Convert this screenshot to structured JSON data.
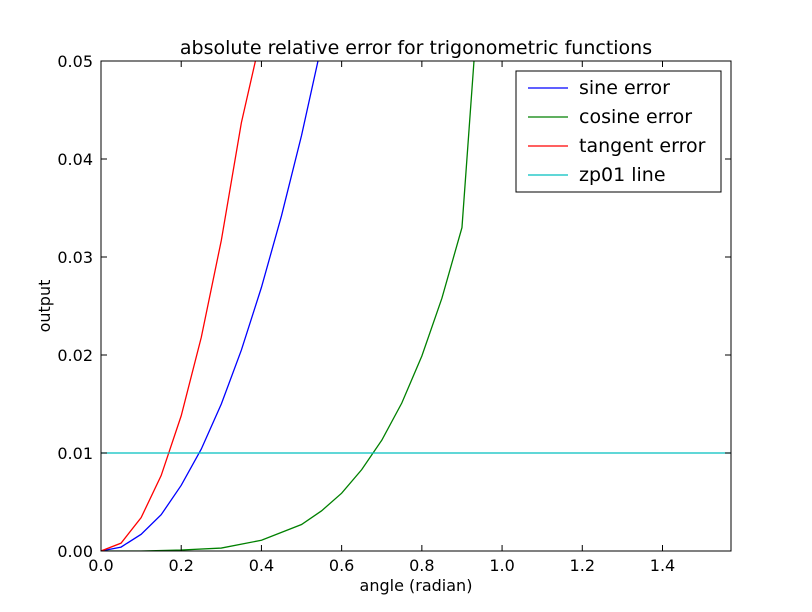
{
  "chart_data": {
    "type": "line",
    "title": "absolute relative error for trigonometric functions",
    "xlabel": "angle (radian)",
    "ylabel": "output",
    "xlim": [
      0.0,
      1.5708
    ],
    "ylim": [
      0.0,
      0.05
    ],
    "grid": false,
    "legend_position": "top-right",
    "x_ticks": [
      "0.0",
      "0.2",
      "0.4",
      "0.6",
      "0.8",
      "1.0",
      "1.2",
      "1.4"
    ],
    "y_ticks": [
      "0.00",
      "0.01",
      "0.02",
      "0.03",
      "0.04",
      "0.05"
    ],
    "series": [
      {
        "name": "sine error",
        "color": "#0000ff",
        "x": [
          0.0,
          0.05,
          0.1,
          0.15,
          0.2,
          0.25,
          0.3,
          0.35,
          0.4,
          0.45,
          0.5,
          0.541
        ],
        "y": [
          0.0,
          0.0004,
          0.0017,
          0.0037,
          0.0067,
          0.0104,
          0.015,
          0.0205,
          0.0269,
          0.0342,
          0.0424,
          0.05
        ]
      },
      {
        "name": "cosine error",
        "color": "#008000",
        "x": [
          0.0,
          0.1,
          0.2,
          0.3,
          0.4,
          0.5,
          0.55,
          0.6,
          0.65,
          0.7,
          0.75,
          0.8,
          0.85,
          0.9,
          0.93
        ],
        "y": [
          0.0,
          0.0,
          0.0001,
          0.0003,
          0.0011,
          0.0027,
          0.0041,
          0.0059,
          0.0083,
          0.0113,
          0.0151,
          0.0199,
          0.0258,
          0.033,
          0.05
        ]
      },
      {
        "name": "tangent error",
        "color": "#ff0000",
        "x": [
          0.0,
          0.05,
          0.1,
          0.15,
          0.2,
          0.25,
          0.3,
          0.35,
          0.385
        ],
        "y": [
          0.0,
          0.0008,
          0.0034,
          0.0077,
          0.0138,
          0.0218,
          0.0317,
          0.0437,
          0.05
        ]
      },
      {
        "name": "zp01 line",
        "color": "#00bfbf",
        "x": [
          0.0,
          1.5708
        ],
        "y": [
          0.01,
          0.01
        ]
      }
    ]
  }
}
